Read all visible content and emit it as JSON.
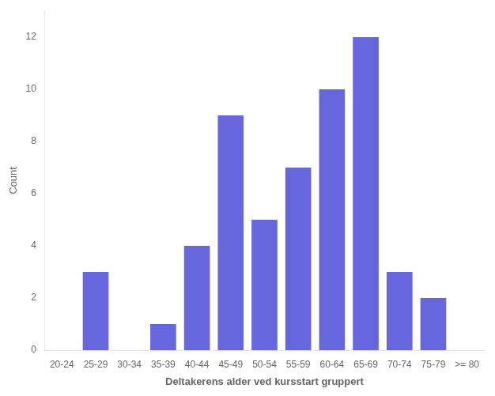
{
  "chart_data": {
    "type": "bar",
    "categories": [
      "20-24",
      "25-29",
      "30-34",
      "35-39",
      "40-44",
      "45-49",
      "50-54",
      "55-59",
      "60-64",
      "65-69",
      "70-74",
      "75-79",
      ">= 80"
    ],
    "values": [
      0,
      3,
      0,
      1,
      4,
      9,
      5,
      7,
      10,
      12,
      3,
      2,
      0
    ],
    "color": "#6666dd",
    "xlabel": "Deltakerens alder ved kursstart gruppert",
    "ylabel": "Count",
    "ylim": [
      0,
      13
    ],
    "yticks": [
      0,
      2,
      4,
      6,
      8,
      10,
      12
    ],
    "grid": false
  }
}
